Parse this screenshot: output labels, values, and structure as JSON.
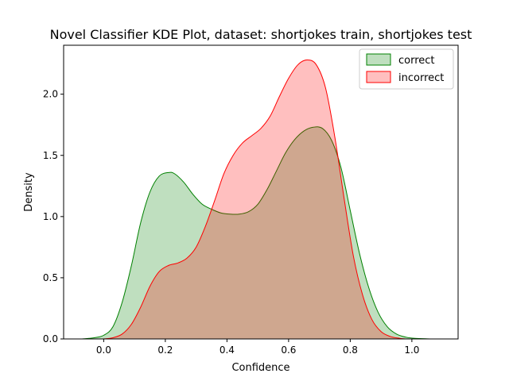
{
  "chart_data": {
    "type": "area",
    "title": "Novel Classifier KDE Plot, dataset: shortjokes train, shortjokes test",
    "xlabel": "Confidence",
    "ylabel": "Density",
    "xlim": [
      -0.13,
      1.15
    ],
    "ylim": [
      0,
      2.4
    ],
    "xticks": [
      0.0,
      0.2,
      0.4,
      0.6,
      0.8,
      1.0
    ],
    "xtick_labels": [
      "0.0",
      "0.2",
      "0.4",
      "0.6",
      "0.8",
      "1.0"
    ],
    "yticks": [
      0.0,
      0.5,
      1.0,
      1.5,
      2.0
    ],
    "ytick_labels": [
      "0.0",
      "0.5",
      "1.0",
      "1.5",
      "2.0"
    ],
    "grid": false,
    "legend_position": "top-right",
    "series": [
      {
        "name": "correct",
        "line_color": "#008000",
        "fill_color": "#008000",
        "x": [
          -0.07,
          -0.03,
          0.0,
          0.03,
          0.06,
          0.09,
          0.12,
          0.15,
          0.18,
          0.21,
          0.23,
          0.26,
          0.29,
          0.32,
          0.35,
          0.38,
          0.41,
          0.44,
          0.47,
          0.5,
          0.53,
          0.56,
          0.59,
          0.62,
          0.65,
          0.68,
          0.71,
          0.74,
          0.77,
          0.8,
          0.83,
          0.86,
          0.89,
          0.92,
          0.95,
          0.98,
          1.01,
          1.05,
          1.08
        ],
        "y": [
          0.0,
          0.01,
          0.03,
          0.1,
          0.3,
          0.6,
          0.95,
          1.2,
          1.33,
          1.36,
          1.35,
          1.28,
          1.18,
          1.1,
          1.06,
          1.03,
          1.02,
          1.02,
          1.04,
          1.1,
          1.22,
          1.37,
          1.52,
          1.63,
          1.7,
          1.73,
          1.72,
          1.62,
          1.4,
          1.05,
          0.7,
          0.42,
          0.22,
          0.1,
          0.04,
          0.015,
          0.005,
          0.001,
          0.0
        ]
      },
      {
        "name": "incorrect",
        "line_color": "#ff0000",
        "fill_color": "#ff0000",
        "x": [
          0.0,
          0.03,
          0.06,
          0.09,
          0.12,
          0.15,
          0.18,
          0.21,
          0.24,
          0.27,
          0.3,
          0.33,
          0.36,
          0.39,
          0.42,
          0.45,
          0.48,
          0.51,
          0.54,
          0.57,
          0.6,
          0.63,
          0.66,
          0.69,
          0.72,
          0.75,
          0.78,
          0.81,
          0.84,
          0.87,
          0.9,
          0.93,
          0.96,
          0.98
        ],
        "y": [
          0.0,
          0.01,
          0.04,
          0.12,
          0.26,
          0.43,
          0.55,
          0.6,
          0.62,
          0.66,
          0.75,
          0.92,
          1.13,
          1.35,
          1.5,
          1.6,
          1.66,
          1.72,
          1.82,
          1.98,
          2.13,
          2.24,
          2.28,
          2.24,
          2.05,
          1.65,
          1.15,
          0.68,
          0.36,
          0.16,
          0.06,
          0.02,
          0.005,
          0.0
        ]
      }
    ]
  }
}
